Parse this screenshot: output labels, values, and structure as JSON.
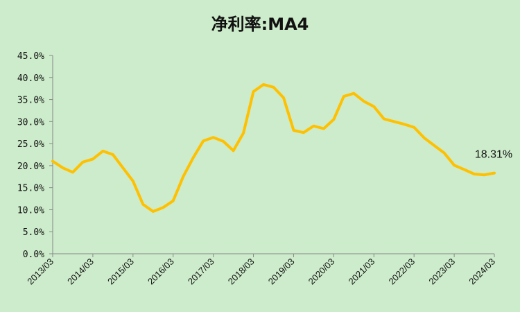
{
  "chart_data": {
    "type": "line",
    "title": "净利率:MA4",
    "xlabel": "",
    "ylabel": "",
    "ylim": [
      0,
      45
    ],
    "ytick_labels": [
      "0.0%",
      "5.0%",
      "10.0%",
      "15.0%",
      "20.0%",
      "25.0%",
      "30.0%",
      "35.0%",
      "40.0%",
      "45.0%"
    ],
    "xtick_labels": [
      "2013/03",
      "2014/03",
      "2015/03",
      "2016/03",
      "2017/03",
      "2018/03",
      "2019/03",
      "2020/03",
      "2021/03",
      "2022/03",
      "2023/03",
      "2024/03"
    ],
    "x": [
      "2013/03",
      "2013/06",
      "2013/09",
      "2013/12",
      "2014/03",
      "2014/06",
      "2014/09",
      "2014/12",
      "2015/03",
      "2015/06",
      "2015/09",
      "2015/12",
      "2016/03",
      "2016/06",
      "2016/09",
      "2016/12",
      "2017/03",
      "2017/06",
      "2017/09",
      "2017/12",
      "2018/03",
      "2018/06",
      "2018/09",
      "2018/12",
      "2019/03",
      "2019/06",
      "2019/09",
      "2019/12",
      "2020/03",
      "2020/06",
      "2020/09",
      "2020/12",
      "2021/03",
      "2021/06",
      "2021/09",
      "2021/12",
      "2022/03",
      "2022/06",
      "2022/09",
      "2022/12",
      "2023/03",
      "2023/06",
      "2023/09",
      "2023/12",
      "2024/03"
    ],
    "series": [
      {
        "values": [
          21.0,
          19.5,
          18.5,
          20.8,
          21.5,
          23.3,
          22.5,
          19.5,
          16.5,
          11.2,
          9.6,
          10.5,
          12.0,
          17.5,
          21.8,
          25.6,
          26.4,
          25.5,
          23.4,
          27.4,
          36.8,
          38.4,
          37.8,
          35.4,
          28.0,
          27.5,
          29.0,
          28.4,
          30.5,
          35.7,
          36.4,
          34.6,
          33.4,
          30.6,
          30.0,
          29.4,
          28.7,
          26.3,
          24.6,
          22.9,
          20.1,
          19.1,
          18.1,
          17.9,
          18.31
        ]
      }
    ],
    "end_label": "18.31%",
    "line_color": "#ffc000",
    "grid": false
  }
}
